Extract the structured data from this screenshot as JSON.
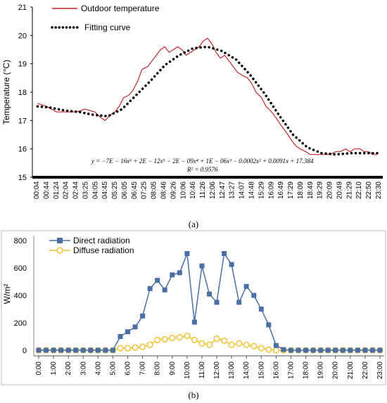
{
  "chart_data": [
    {
      "type": "line",
      "panel": "(a)",
      "ylabel": "Temperature (°C)",
      "ylim": [
        15,
        21
      ],
      "yticks": [
        "15",
        "16",
        "17",
        "18",
        "19",
        "20",
        "21"
      ],
      "xticks": [
        "00:04",
        "00:44",
        "01:24",
        "02:04",
        "02:44",
        "03:25",
        "04:05",
        "04:45",
        "05:25",
        "06:05",
        "06:45",
        "07:25",
        "08:05",
        "08:46",
        "09:26",
        "10:06",
        "10:46",
        "11:26",
        "12:06",
        "12:47",
        "13:27",
        "14:07",
        "14:48",
        "15:29",
        "16:09",
        "16:49",
        "17:29",
        "18:09",
        "18:49",
        "19:29",
        "20:09",
        "20:49",
        "21:29",
        "22:10",
        "22:50",
        "23:30"
      ],
      "grid": false,
      "legend_position": "top-left",
      "series": [
        {
          "name": "Outdoor temperature",
          "color": "#c0282a",
          "style": "solid",
          "x_hours": [
            0.07,
            0.7,
            1.4,
            2.1,
            2.8,
            3.4,
            4.1,
            4.5,
            4.8,
            5.2,
            5.5,
            5.8,
            6.1,
            6.5,
            6.8,
            7.1,
            7.4,
            7.8,
            8.1,
            8.4,
            8.7,
            9.0,
            9.3,
            9.6,
            9.9,
            10.2,
            10.5,
            10.8,
            11.1,
            11.4,
            11.7,
            12.0,
            12.3,
            12.6,
            12.9,
            13.2,
            13.5,
            13.8,
            14.1,
            14.4,
            14.8,
            15.1,
            15.4,
            15.8,
            16.1,
            16.5,
            16.8,
            17.2,
            17.5,
            17.9,
            18.2,
            18.5,
            18.9,
            19.2,
            19.6,
            19.9,
            20.3,
            20.6,
            21.0,
            21.3,
            21.7,
            22.0,
            22.3,
            22.7,
            23.0,
            23.3,
            23.6,
            23.9
          ],
          "values": [
            17.6,
            17.5,
            17.3,
            17.3,
            17.3,
            17.4,
            17.3,
            17.1,
            17.0,
            17.2,
            17.3,
            17.5,
            17.8,
            17.9,
            18.1,
            18.4,
            18.8,
            18.9,
            19.1,
            19.3,
            19.5,
            19.6,
            19.4,
            19.5,
            19.6,
            19.5,
            19.3,
            19.4,
            19.5,
            19.6,
            19.8,
            19.9,
            19.7,
            19.4,
            19.2,
            19.3,
            19.1,
            18.9,
            18.7,
            18.6,
            18.5,
            18.3,
            18.0,
            17.8,
            17.5,
            17.3,
            17.1,
            16.8,
            16.6,
            16.3,
            16.1,
            16.0,
            15.9,
            15.8,
            15.8,
            15.8,
            15.8,
            15.8,
            15.9,
            15.9,
            16.0,
            15.9,
            16.0,
            16.0,
            15.9,
            15.9,
            15.8,
            15.8
          ]
        },
        {
          "name": "Fitting curve",
          "color": "#000000",
          "style": "dotted",
          "x_hours": [
            0.07,
            1,
            2,
            3,
            4,
            5,
            6,
            7,
            8,
            9,
            10,
            11,
            12,
            13,
            14,
            15,
            16,
            17,
            18,
            19,
            20,
            21,
            22,
            23,
            23.9
          ],
          "values": [
            17.5,
            17.45,
            17.35,
            17.3,
            17.2,
            17.15,
            17.4,
            17.9,
            18.4,
            18.95,
            19.3,
            19.55,
            19.6,
            19.45,
            19.15,
            18.6,
            17.95,
            17.2,
            16.5,
            16.05,
            15.85,
            15.8,
            15.85,
            15.85,
            15.85
          ]
        }
      ],
      "annotations": {
        "equation": "y = −7E − 16x⁶ + 2E − 12x⁵ − 2E − 09x⁴ + 1E − 06x³ − 0.0002x² + 0.0091x + 17.384",
        "r2": "R² = 0.9576"
      }
    },
    {
      "type": "line",
      "panel": "(b)",
      "ylabel": "W/m²",
      "ylim": [
        -60,
        860
      ],
      "yticks": [
        "0",
        "200",
        "400",
        "600",
        "800"
      ],
      "xticks": [
        "0:00",
        "1:00",
        "2:00",
        "3:00",
        "4:00",
        "5:00",
        "6:00",
        "7:00",
        "8:00",
        "9:00",
        "10:00",
        "11:00",
        "12:00",
        "13:00",
        "14:00",
        "15:00",
        "16:00",
        "17:00",
        "18:00",
        "19:00",
        "20:00",
        "21:00",
        "22:00",
        "23:00"
      ],
      "grid": false,
      "legend_position": "top-left",
      "series": [
        {
          "name": "Direct radiation",
          "color": "#4a6fa5",
          "marker": "square",
          "x": [
            0,
            0.5,
            1,
            1.5,
            2,
            2.5,
            3,
            3.5,
            4,
            4.5,
            5,
            5.5,
            6,
            6.5,
            7,
            7.5,
            8,
            8.5,
            9,
            9.5,
            10,
            10.5,
            11,
            11.5,
            12,
            12.5,
            13,
            13.5,
            14,
            14.5,
            15,
            15.5,
            16,
            16.5,
            17,
            17.5,
            18,
            18.5,
            19,
            19.5,
            20,
            20.5,
            21,
            21.5,
            22,
            22.5,
            23
          ],
          "values": [
            0,
            0,
            0,
            0,
            0,
            0,
            0,
            0,
            0,
            0,
            0,
            100,
            135,
            170,
            250,
            450,
            510,
            440,
            550,
            565,
            705,
            205,
            615,
            410,
            350,
            705,
            625,
            350,
            465,
            400,
            300,
            185,
            35,
            5,
            0,
            0,
            0,
            0,
            0,
            0,
            0,
            0,
            0,
            0,
            0,
            0,
            0
          ]
        },
        {
          "name": "Diffuse radiation",
          "color": "#f2c233",
          "marker": "circle",
          "x": [
            0,
            0.5,
            1,
            1.5,
            2,
            2.5,
            3,
            3.5,
            4,
            4.5,
            5,
            5.5,
            6,
            6.5,
            7,
            7.5,
            8,
            8.5,
            9,
            9.5,
            10,
            10.5,
            11,
            11.5,
            12,
            12.5,
            13,
            13.5,
            14,
            14.5,
            15,
            15.5,
            16,
            16.5,
            17,
            17.5,
            18,
            18.5,
            19,
            19.5,
            20,
            20.5,
            21,
            21.5,
            22,
            22.5,
            23
          ],
          "values": [
            0,
            0,
            0,
            0,
            0,
            0,
            0,
            0,
            0,
            0,
            0,
            15,
            15,
            20,
            25,
            40,
            75,
            80,
            90,
            95,
            105,
            75,
            50,
            40,
            85,
            70,
            40,
            50,
            40,
            30,
            15,
            5,
            0,
            0,
            0,
            0,
            0,
            0,
            0,
            0,
            0,
            0,
            0,
            0,
            0,
            0,
            0
          ]
        }
      ]
    }
  ]
}
